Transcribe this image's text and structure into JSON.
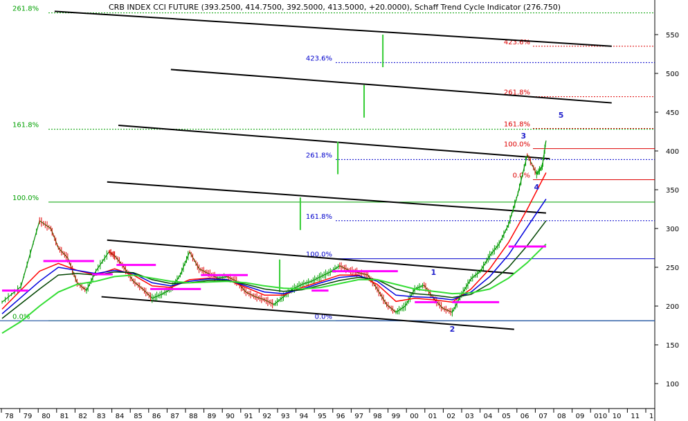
{
  "chart_data": {
    "type": "line",
    "title": "CRB INDEX CCI FUTURE (393.2500, 414.7500, 392.5000, 413.5000, +20.0000), Schaff Trend Cycle Indicator (276.750)",
    "ylim": [
      50,
      600
    ],
    "y_ticks": [
      100,
      150,
      200,
      250,
      300,
      350,
      400,
      450,
      500,
      550
    ],
    "x_ticks": [
      "78",
      "79",
      "80",
      "81",
      "82",
      "83",
      "84",
      "85",
      "86",
      "87",
      "88",
      "89",
      "90",
      "91",
      "92",
      "93",
      "94",
      "95",
      "96",
      "97",
      "98",
      "99",
      "00",
      "01",
      "02",
      "03",
      "04",
      "05",
      "06",
      "07",
      "08",
      "09",
      "010",
      "10",
      "11",
      "1"
    ],
    "series": [
      {
        "values": [
          [
            1978,
            205
          ],
          [
            1979,
            225
          ],
          [
            1980,
            310
          ],
          [
            1980.6,
            300
          ],
          [
            1981,
            275
          ],
          [
            1981.5,
            262
          ],
          [
            1982,
            230
          ],
          [
            1982.5,
            220
          ],
          [
            1983,
            245
          ],
          [
            1983.7,
            270
          ],
          [
            1984,
            265
          ],
          [
            1984.5,
            250
          ],
          [
            1985,
            232
          ],
          [
            1985.5,
            222
          ],
          [
            1986,
            210
          ],
          [
            1986.5,
            215
          ],
          [
            1987,
            222
          ],
          [
            1987.5,
            240
          ],
          [
            1988,
            270
          ],
          [
            1988.5,
            248
          ],
          [
            1989,
            242
          ],
          [
            1989.5,
            236
          ],
          [
            1990,
            238
          ],
          [
            1990.5,
            232
          ],
          [
            1991,
            218
          ],
          [
            1991.5,
            212
          ],
          [
            1992,
            208
          ],
          [
            1992.5,
            202
          ],
          [
            1993,
            212
          ],
          [
            1993.5,
            222
          ],
          [
            1994,
            228
          ],
          [
            1994.5,
            232
          ],
          [
            1995,
            238
          ],
          [
            1995.5,
            244
          ],
          [
            1996,
            252
          ],
          [
            1996.5,
            246
          ],
          [
            1997,
            243
          ],
          [
            1997.5,
            240
          ],
          [
            1998,
            222
          ],
          [
            1998.5,
            202
          ],
          [
            1999,
            192
          ],
          [
            1999.5,
            200
          ],
          [
            2000,
            222
          ],
          [
            2000.5,
            227
          ],
          [
            2001,
            210
          ],
          [
            2001.5,
            197
          ],
          [
            2002,
            192
          ],
          [
            2002.5,
            215
          ],
          [
            2003,
            235
          ],
          [
            2003.5,
            245
          ],
          [
            2004,
            265
          ],
          [
            2004.5,
            280
          ],
          [
            2005,
            305
          ],
          [
            2005.5,
            345
          ],
          [
            2006,
            395
          ],
          [
            2006.5,
            370
          ],
          [
            2006.8,
            380
          ],
          [
            2007,
            413.5
          ]
        ]
      },
      {
        "values": [
          [
            1978,
            196
          ],
          [
            1980,
            245
          ],
          [
            1981,
            255
          ],
          [
            1982,
            246
          ],
          [
            1983,
            240
          ],
          [
            1984,
            248
          ],
          [
            1985,
            240
          ],
          [
            1986,
            226
          ],
          [
            1987,
            224
          ],
          [
            1988,
            234
          ],
          [
            1989,
            236
          ],
          [
            1990,
            234
          ],
          [
            1991,
            224
          ],
          [
            1992,
            214
          ],
          [
            1993,
            214
          ],
          [
            1994,
            224
          ],
          [
            1995,
            232
          ],
          [
            1996,
            240
          ],
          [
            1997,
            240
          ],
          [
            1998,
            228
          ],
          [
            1999,
            206
          ],
          [
            2000,
            210
          ],
          [
            2001,
            208
          ],
          [
            2002,
            205
          ],
          [
            2003,
            222
          ],
          [
            2004,
            248
          ],
          [
            2005,
            282
          ],
          [
            2006,
            325
          ],
          [
            2007,
            372
          ]
        ]
      },
      {
        "values": [
          [
            1978,
            190
          ],
          [
            1980,
            232
          ],
          [
            1981,
            250
          ],
          [
            1982,
            246
          ],
          [
            1983,
            242
          ],
          [
            1984,
            246
          ],
          [
            1985,
            242
          ],
          [
            1986,
            230
          ],
          [
            1987,
            226
          ],
          [
            1988,
            232
          ],
          [
            1989,
            235
          ],
          [
            1990,
            234
          ],
          [
            1991,
            226
          ],
          [
            1992,
            218
          ],
          [
            1993,
            216
          ],
          [
            1994,
            222
          ],
          [
            1995,
            230
          ],
          [
            1996,
            237
          ],
          [
            1997,
            239
          ],
          [
            1998,
            232
          ],
          [
            1999,
            214
          ],
          [
            2000,
            212
          ],
          [
            2001,
            211
          ],
          [
            2002,
            208
          ],
          [
            2003,
            218
          ],
          [
            2004,
            238
          ],
          [
            2005,
            266
          ],
          [
            2006,
            302
          ],
          [
            2007,
            338
          ]
        ]
      },
      {
        "values": [
          [
            1978,
            184
          ],
          [
            1980,
            222
          ],
          [
            1981,
            240
          ],
          [
            1982,
            242
          ],
          [
            1983,
            240
          ],
          [
            1984,
            244
          ],
          [
            1985,
            243
          ],
          [
            1986,
            234
          ],
          [
            1987,
            229
          ],
          [
            1988,
            230
          ],
          [
            1989,
            233
          ],
          [
            1990,
            233
          ],
          [
            1991,
            228
          ],
          [
            1992,
            222
          ],
          [
            1993,
            219
          ],
          [
            1994,
            221
          ],
          [
            1995,
            227
          ],
          [
            1996,
            233
          ],
          [
            1997,
            237
          ],
          [
            1998,
            234
          ],
          [
            1999,
            222
          ],
          [
            2000,
            216
          ],
          [
            2001,
            214
          ],
          [
            2002,
            211
          ],
          [
            2003,
            215
          ],
          [
            2004,
            229
          ],
          [
            2005,
            250
          ],
          [
            2006,
            278
          ],
          [
            2007,
            310
          ]
        ]
      },
      {
        "values": [
          [
            1978,
            165
          ],
          [
            1979,
            180
          ],
          [
            1980,
            200
          ],
          [
            1981,
            218
          ],
          [
            1982,
            228
          ],
          [
            1983,
            232
          ],
          [
            1984,
            238
          ],
          [
            1985,
            240
          ],
          [
            1986,
            236
          ],
          [
            1987,
            232
          ],
          [
            1988,
            230
          ],
          [
            1989,
            231
          ],
          [
            1990,
            232
          ],
          [
            1991,
            230
          ],
          [
            1992,
            226
          ],
          [
            1993,
            223
          ],
          [
            1994,
            222
          ],
          [
            1995,
            224
          ],
          [
            1996,
            229
          ],
          [
            1997,
            234
          ],
          [
            1998,
            234
          ],
          [
            1999,
            228
          ],
          [
            2000,
            222
          ],
          [
            2001,
            219
          ],
          [
            2002,
            216
          ],
          [
            2003,
            217
          ],
          [
            2004,
            222
          ],
          [
            2005,
            236
          ],
          [
            2006,
            256
          ],
          [
            2007,
            280
          ]
        ]
      }
    ],
    "channel_lines": [
      [
        [
          1980.8,
          580
        ],
        [
          2010.5,
          535
        ]
      ],
      [
        [
          1987,
          505
        ],
        [
          2010.5,
          462
        ]
      ],
      [
        [
          1984.2,
          433
        ],
        [
          2007.2,
          390
        ]
      ],
      [
        [
          1983.6,
          360
        ],
        [
          2007,
          320
        ]
      ],
      [
        [
          1983.6,
          285
        ],
        [
          2005.3,
          242
        ]
      ],
      [
        [
          1983.3,
          212
        ],
        [
          2005.3,
          170
        ]
      ]
    ],
    "vertical_lines": [
      [
        1992.8,
        260
      ],
      [
        1993.9,
        340
      ],
      [
        1995.9,
        412
      ],
      [
        1997.3,
        485
      ],
      [
        1998.3,
        550
      ]
    ],
    "support_segments": [
      [
        1978,
        1979.4,
        220
      ],
      [
        1980.2,
        1982.9,
        258
      ],
      [
        1982.8,
        1983.9,
        241
      ],
      [
        1984.1,
        1986.2,
        253
      ],
      [
        1985.9,
        1988.6,
        222
      ],
      [
        1988.6,
        1991.1,
        240
      ],
      [
        1994.5,
        1995.4,
        220
      ],
      [
        1995.6,
        1999.1,
        245
      ],
      [
        2000,
        2001.2,
        205
      ],
      [
        2002,
        2004.5,
        205
      ],
      [
        2005,
        2007,
        276.75
      ]
    ],
    "hlines_green": [
      {
        "label": "261.8%",
        "y": 578
      },
      {
        "label": "161.8%",
        "y": 428
      },
      {
        "label": "100.0%",
        "y": 334
      },
      {
        "label": "0.0%",
        "y": 181
      }
    ],
    "hlines_blue": [
      {
        "label": "423.6%",
        "y": 514
      },
      {
        "label": "261.8%",
        "y": 389
      },
      {
        "label": "161.8%",
        "y": 310
      },
      {
        "label": "100.0%",
        "y": 261
      },
      {
        "label": "0.0%",
        "y": 181
      }
    ],
    "hlines_red": [
      {
        "label": "423.6%",
        "y": 535
      },
      {
        "label": "261.8%",
        "y": 470
      },
      {
        "label": "161.8%",
        "y": 429
      },
      {
        "label": "100.0%",
        "y": 403
      },
      {
        "label": "0.0%",
        "y": 363
      }
    ],
    "wave_labels": [
      {
        "label": "1",
        "x": 2001,
        "y": 240
      },
      {
        "label": "2",
        "x": 2002,
        "y": 167
      },
      {
        "label": "3",
        "x": 2005.8,
        "y": 416
      },
      {
        "label": "4",
        "x": 2006.5,
        "y": 350
      },
      {
        "label": "5",
        "x": 2007.8,
        "y": 443
      }
    ]
  }
}
